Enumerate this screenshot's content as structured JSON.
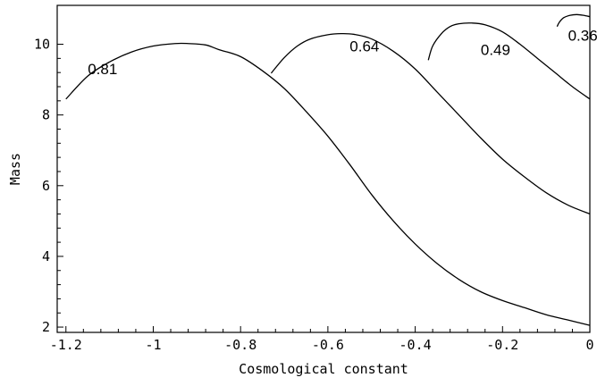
{
  "chart_data": {
    "type": "line",
    "title": "",
    "xlabel": "Cosmological constant",
    "ylabel": "Mass",
    "xlim": [
      -1.22,
      0.0
    ],
    "ylim": [
      1.85,
      11.1
    ],
    "grid": false,
    "x_ticks": [
      {
        "value": -1.2,
        "label": "-1.2"
      },
      {
        "value": -1.0,
        "label": "-1"
      },
      {
        "value": -0.8,
        "label": "-0.8"
      },
      {
        "value": -0.6,
        "label": "-0.6"
      },
      {
        "value": -0.4,
        "label": "-0.4"
      },
      {
        "value": -0.2,
        "label": "-0.2"
      },
      {
        "value": 0.0,
        "label": "0"
      }
    ],
    "y_ticks": [
      {
        "value": 2,
        "label": "2"
      },
      {
        "value": 4,
        "label": "4"
      },
      {
        "value": 6,
        "label": "6"
      },
      {
        "value": 8,
        "label": "8"
      },
      {
        "value": 10,
        "label": "10"
      }
    ],
    "series": [
      {
        "name": "0.81",
        "x": [
          -1.2,
          -1.15,
          -1.1,
          -1.05,
          -1.0,
          -0.95,
          -0.92,
          -0.88,
          -0.85,
          -0.8,
          -0.75,
          -0.7,
          -0.65,
          -0.6,
          -0.55,
          -0.5,
          -0.45,
          -0.4,
          -0.35,
          -0.3,
          -0.25,
          -0.2,
          -0.15,
          -0.1,
          -0.05,
          0.0
        ],
        "y": [
          8.45,
          9.1,
          9.5,
          9.78,
          9.95,
          10.02,
          10.02,
          9.98,
          9.85,
          9.65,
          9.25,
          8.75,
          8.1,
          7.4,
          6.6,
          5.75,
          5.0,
          4.35,
          3.8,
          3.35,
          3.0,
          2.75,
          2.55,
          2.35,
          2.2,
          2.05
        ]
      },
      {
        "name": "0.64",
        "x": [
          -0.73,
          -0.7,
          -0.67,
          -0.64,
          -0.6,
          -0.57,
          -0.54,
          -0.5,
          -0.45,
          -0.4,
          -0.35,
          -0.3,
          -0.25,
          -0.2,
          -0.15,
          -0.1,
          -0.05,
          0.0
        ],
        "y": [
          9.18,
          9.62,
          9.95,
          10.15,
          10.27,
          10.3,
          10.28,
          10.15,
          9.8,
          9.3,
          8.65,
          8.0,
          7.35,
          6.75,
          6.25,
          5.8,
          5.45,
          5.2
        ]
      },
      {
        "name": "0.49",
        "x": [
          -0.37,
          -0.36,
          -0.34,
          -0.32,
          -0.3,
          -0.27,
          -0.24,
          -0.2,
          -0.16,
          -0.12,
          -0.08,
          -0.04,
          0.0
        ],
        "y": [
          9.55,
          9.95,
          10.3,
          10.5,
          10.58,
          10.6,
          10.55,
          10.35,
          10.0,
          9.6,
          9.2,
          8.8,
          8.45
        ]
      },
      {
        "name": "0.36",
        "x": [
          -0.075,
          -0.07,
          -0.06,
          -0.045,
          -0.03,
          -0.015,
          0.0
        ],
        "y": [
          10.5,
          10.62,
          10.75,
          10.82,
          10.84,
          10.82,
          10.78
        ]
      }
    ],
    "annotations": [
      {
        "text": "0.81",
        "x": -1.15,
        "y": 9.15
      },
      {
        "text": "0.64",
        "x": -0.55,
        "y": 9.8
      },
      {
        "text": "0.49",
        "x": -0.25,
        "y": 9.7
      },
      {
        "text": "0.36",
        "x": -0.05,
        "y": 10.1
      }
    ]
  }
}
